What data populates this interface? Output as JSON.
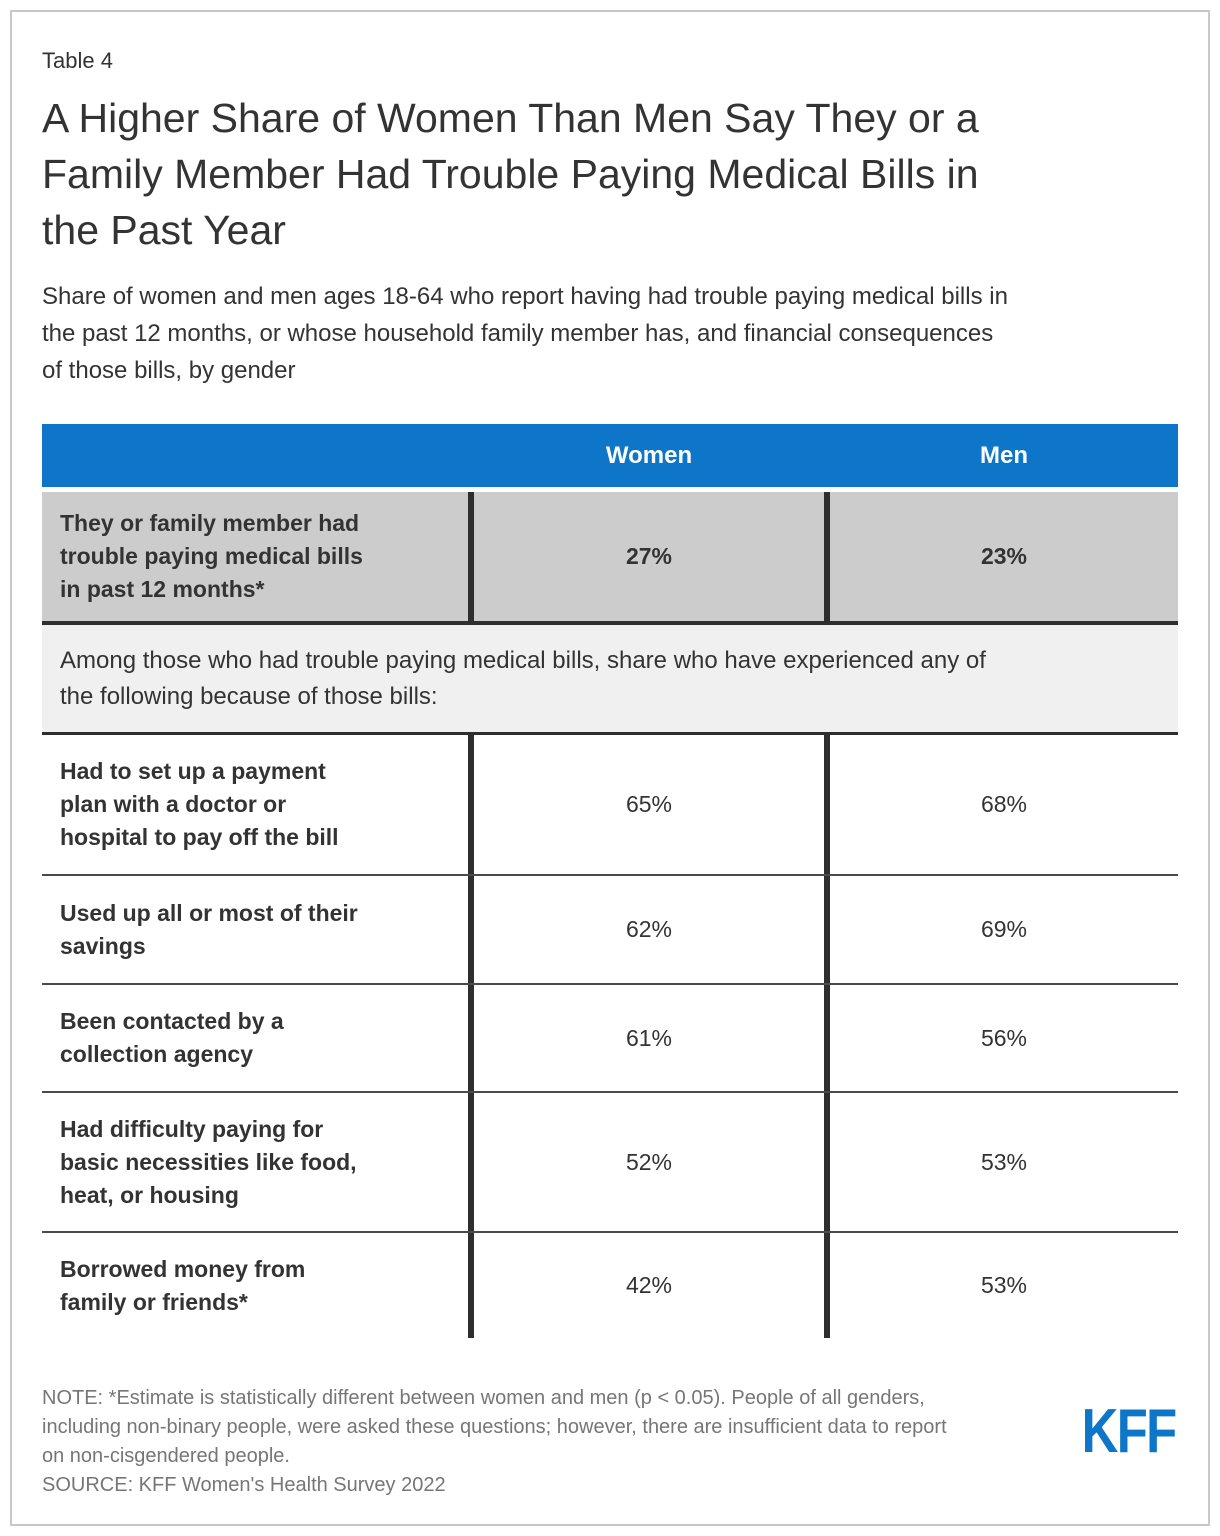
{
  "ui": {
    "table_label": "Table 4",
    "title": "A Higher Share of Women Than Men Say They or a\nFamily Member Had Trouble Paying Medical Bills in\nthe Past Year",
    "subtitle": "Share of women and men ages 18-64 who report having had trouble paying medical bills in\nthe past 12 months, or whose household family member has, and financial consequences\nof those bills, by gender",
    "columns": {
      "women": "Women",
      "men": "Men"
    },
    "highlight_row": {
      "label": "They or family member had\ntrouble paying medical bills\nin past 12 months*",
      "women": "27%",
      "men": "23%"
    },
    "section_header": "Among those who had trouble paying medical bills, share who have experienced any of\nthe following because of those bills:",
    "rows": [
      {
        "label": "Had to set up a payment\nplan with a doctor or\nhospital to pay off the bill",
        "women": "65%",
        "men": "68%"
      },
      {
        "label": "Used up all or most of their\nsavings",
        "women": "62%",
        "men": "69%"
      },
      {
        "label": "Been contacted by a\ncollection agency",
        "women": "61%",
        "men": "56%"
      },
      {
        "label": "Had difficulty paying for\nbasic necessities like food,\nheat, or housing",
        "women": "52%",
        "men": "53%"
      },
      {
        "label": "Borrowed money from\nfamily or friends*",
        "women": "42%",
        "men": "53%"
      }
    ],
    "note": "NOTE: *Estimate is statistically different between women and men (p < 0.05). People of all genders,\nincluding non-binary people, were asked these questions; however, there are insufficient data to report\non non-cisgendered people.",
    "source": "SOURCE: KFF Women's Health Survey 2022",
    "logo_text": "KFF"
  },
  "colors": {
    "brand_blue": "#0d76c8",
    "highlight_row_gray": "#cccccc",
    "section_band_gray": "#f0f0f0",
    "divider_dark": "#2e2e2e",
    "text_dark": "#333333",
    "note_gray": "#767676",
    "frame_border": "#c8c8c8"
  },
  "chart_data": {
    "type": "table",
    "title": "A Higher Share of Women Than Men Say They or a Family Member Had Trouble Paying Medical Bills in the Past Year",
    "subtitle": "Share of women and men ages 18-64 who report having had trouble paying medical bills in the past 12 months, or whose household family member has, and financial consequences of those bills, by gender",
    "columns": [
      "Women",
      "Men"
    ],
    "rows": [
      {
        "label": "They or family member had trouble paying medical bills in past 12 months*",
        "women_pct": 27,
        "men_pct": 23,
        "highlighted": true
      },
      {
        "label": "Had to set up a payment plan with a doctor or hospital to pay off the bill",
        "women_pct": 65,
        "men_pct": 68,
        "highlighted": false
      },
      {
        "label": "Used up all or most of their savings",
        "women_pct": 62,
        "men_pct": 69,
        "highlighted": false
      },
      {
        "label": "Been contacted by a collection agency",
        "women_pct": 61,
        "men_pct": 56,
        "highlighted": false
      },
      {
        "label": "Had difficulty paying for basic necessities like food, heat, or housing",
        "women_pct": 52,
        "men_pct": 53,
        "highlighted": false
      },
      {
        "label": "Borrowed money from family or friends*",
        "women_pct": 42,
        "men_pct": 53,
        "highlighted": false
      }
    ],
    "section_note": "Among those who had trouble paying medical bills, share who have experienced any of the following because of those bills:",
    "footnote": "NOTE: *Estimate is statistically different between women and men (p < 0.05). People of all genders, including non-binary people, were asked these questions; however, there are insufficient data to report on non-cisgendered people.",
    "source": "SOURCE: KFF Women's Health Survey 2022"
  }
}
